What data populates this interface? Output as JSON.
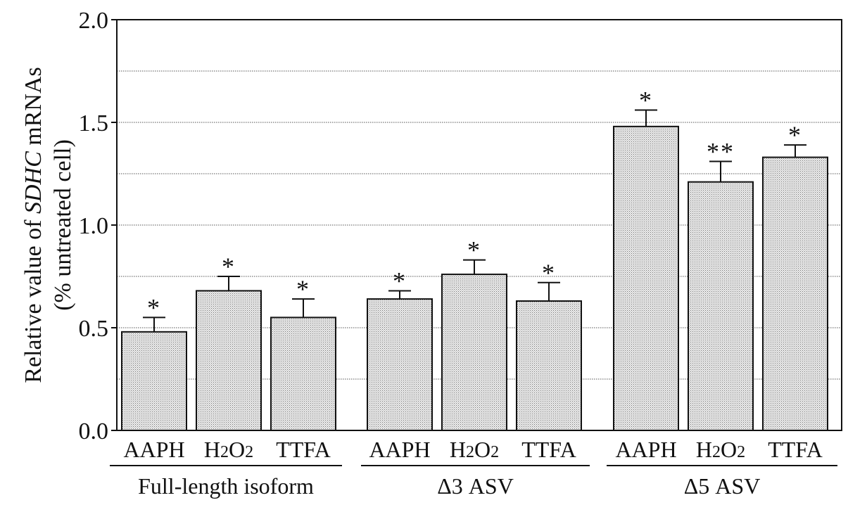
{
  "chart_data": {
    "type": "bar",
    "ylabel_line1_prefix": "Relative value of ",
    "ylabel_line1_italic": "SDHC",
    "ylabel_line1_suffix": " mRNAs",
    "ylabel_line2": "(% untreated cell)",
    "ylim": [
      0,
      2.0
    ],
    "yticks": [
      "0.0",
      "0.5",
      "1.0",
      "1.5",
      "2.0"
    ],
    "grid": true,
    "groups": [
      {
        "name": "Full-length isoform",
        "bars": [
          {
            "label": "AAPH",
            "value": 0.48,
            "error": 0.07,
            "sig": "*"
          },
          {
            "label": "H2O2",
            "value": 0.68,
            "error": 0.07,
            "sig": "*"
          },
          {
            "label": "TTFA",
            "value": 0.55,
            "error": 0.09,
            "sig": "*"
          }
        ]
      },
      {
        "name": "Δ3 ASV",
        "bars": [
          {
            "label": "AAPH",
            "value": 0.64,
            "error": 0.04,
            "sig": "*"
          },
          {
            "label": "H2O2",
            "value": 0.76,
            "error": 0.07,
            "sig": "*"
          },
          {
            "label": "TTFA",
            "value": 0.63,
            "error": 0.09,
            "sig": "*"
          }
        ]
      },
      {
        "name": "Δ5 ASV",
        "bars": [
          {
            "label": "AAPH",
            "value": 1.48,
            "error": 0.08,
            "sig": "*"
          },
          {
            "label": "H2O2",
            "value": 1.21,
            "error": 0.1,
            "sig": "**"
          },
          {
            "label": "TTFA",
            "value": 1.33,
            "error": 0.06,
            "sig": "*"
          }
        ]
      }
    ],
    "colors": {
      "bar_fill": "#e2e2e2",
      "bar_stroke": "#111111",
      "grid": "#555555"
    }
  }
}
